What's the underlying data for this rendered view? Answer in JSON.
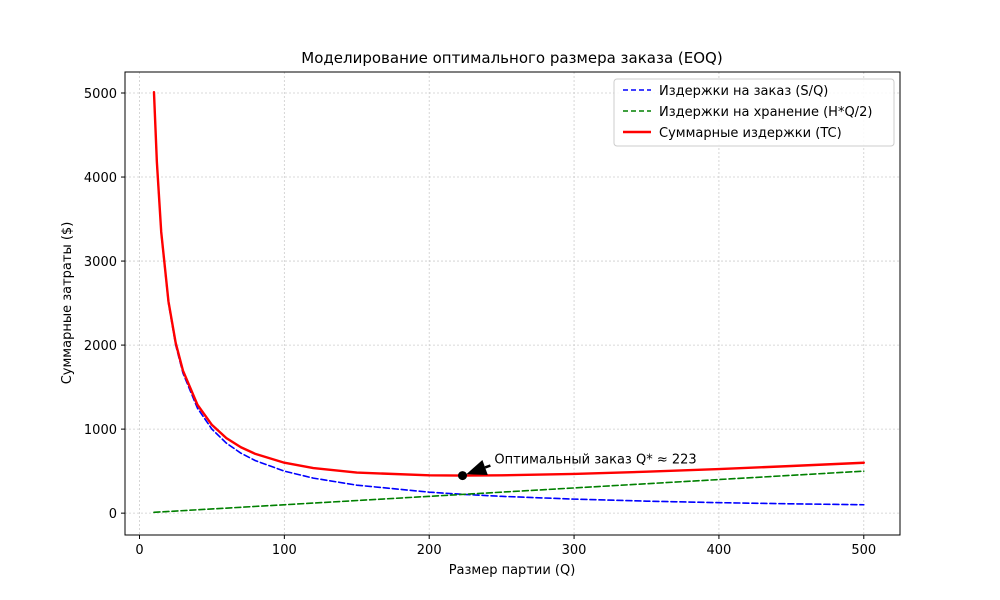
{
  "chart_data": {
    "type": "line",
    "title": "Моделирование оптимального размера заказа (EOQ)",
    "xlabel": "Размер партии (Q)",
    "ylabel": "Суммарные затраты ($)",
    "xlim": [
      -10,
      525
    ],
    "ylim": [
      -260,
      5250
    ],
    "xticks": [
      0,
      100,
      200,
      300,
      400,
      500
    ],
    "yticks": [
      0,
      1000,
      2000,
      3000,
      4000,
      5000
    ],
    "grid": true,
    "legend_position": "top-right",
    "series": [
      {
        "name": "Издержки на заказ (S/Q)",
        "color": "#0000ff",
        "style": "dashed",
        "x": [
          10,
          12,
          15,
          20,
          25,
          30,
          40,
          50,
          60,
          70,
          80,
          100,
          120,
          150,
          200,
          223,
          250,
          300,
          350,
          400,
          450,
          500
        ],
        "y": [
          5000,
          4167,
          3333,
          2500,
          2000,
          1667,
          1250,
          1000,
          833,
          714,
          625,
          500,
          417,
          333,
          250,
          224,
          200,
          167,
          143,
          125,
          111,
          100
        ]
      },
      {
        "name": "Издержки на хранение (H*Q/2)",
        "color": "#008000",
        "style": "dashed",
        "x": [
          10,
          500
        ],
        "y": [
          10,
          500
        ]
      },
      {
        "name": "Суммарные издержки (TC)",
        "color": "#ff0000",
        "style": "solid",
        "x": [
          10,
          12,
          15,
          20,
          25,
          30,
          40,
          50,
          60,
          70,
          80,
          100,
          120,
          150,
          200,
          223,
          250,
          300,
          350,
          400,
          450,
          500
        ],
        "y": [
          5010,
          4179,
          3348,
          2520,
          2025,
          1697,
          1290,
          1050,
          893,
          784,
          705,
          600,
          537,
          483,
          450,
          447,
          450,
          467,
          493,
          525,
          561,
          600
        ]
      }
    ],
    "annotation": {
      "text": "Оптимальный заказ Q* ≈ 223",
      "point": [
        223,
        447
      ],
      "text_anchor": [
        245,
        590
      ]
    }
  }
}
